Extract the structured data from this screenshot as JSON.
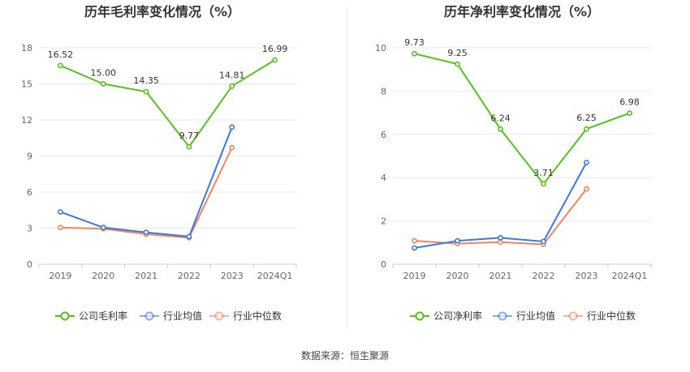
{
  "source": "数据来源：恒生聚源",
  "colors": {
    "company": "#52C41A",
    "avg": "#3A78E0",
    "median": "#F0845C"
  },
  "chart_data": [
    {
      "type": "line",
      "title": "历年毛利率变化情况（%）",
      "categories": [
        "2019",
        "2020",
        "2021",
        "2022",
        "2023",
        "2024Q1"
      ],
      "ylim": [
        0,
        18
      ],
      "yticks": [
        "0",
        "3",
        "6",
        "9",
        "12",
        "15",
        "18"
      ],
      "ytick_values": [
        0,
        3,
        6,
        9,
        12,
        15,
        18
      ],
      "grid": true,
      "legend_position": "bottom",
      "series": [
        {
          "name": "公司毛利率",
          "values": [
            16.52,
            15.0,
            14.35,
            9.77,
            14.81,
            16.99
          ],
          "labels": [
            "16.52",
            "15.00",
            "14.35",
            "9.77",
            "14.81",
            "16.99"
          ]
        },
        {
          "name": "行业均值",
          "values": [
            4.35,
            3.05,
            2.65,
            2.3,
            11.4,
            null
          ]
        },
        {
          "name": "行业中位数",
          "values": [
            3.05,
            2.95,
            2.5,
            2.2,
            9.7,
            null
          ]
        }
      ]
    },
    {
      "type": "line",
      "title": "历年净利率变化情况（%）",
      "categories": [
        "2019",
        "2020",
        "2021",
        "2022",
        "2023",
        "2024Q1"
      ],
      "ylim": [
        0,
        10
      ],
      "yticks": [
        "0",
        "2",
        "4",
        "6",
        "8",
        "10"
      ],
      "ytick_values": [
        0,
        2,
        4,
        6,
        8,
        10
      ],
      "grid": true,
      "legend_position": "bottom",
      "series": [
        {
          "name": "公司净利率",
          "values": [
            9.73,
            9.25,
            6.24,
            3.71,
            6.25,
            6.98
          ],
          "labels": [
            "9.73",
            "9.25",
            "6.24",
            "3.71",
            "6.25",
            "6.98"
          ]
        },
        {
          "name": "行业均值",
          "values": [
            0.75,
            1.08,
            1.22,
            1.05,
            4.7,
            null
          ]
        },
        {
          "name": "行业中位数",
          "values": [
            1.08,
            0.95,
            1.02,
            0.92,
            3.48,
            null
          ]
        }
      ]
    }
  ]
}
